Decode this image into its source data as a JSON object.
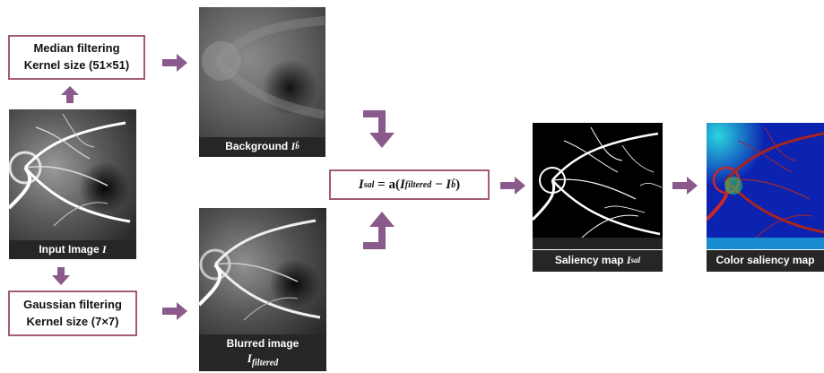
{
  "median_box": {
    "line1": "Median filtering",
    "line2": "Kernel size (51×51)"
  },
  "gaussian_box": {
    "line1": "Gaussian filtering",
    "line2": "Kernel size (7×7)"
  },
  "input_caption": {
    "text": "Input Image ",
    "symbol": "I"
  },
  "background_caption": {
    "text": "Background ",
    "symbol": "I",
    "sub": "b̂"
  },
  "blurred_caption": {
    "line1": "Blurred image",
    "symbol": "I",
    "sub": "filtered"
  },
  "formula": {
    "lhs": "I",
    "lhs_sub": "sal",
    "eq": " = a(",
    "term1": "I",
    "term1_sub": "filtered",
    "minus": " − ",
    "term2": "I",
    "term2_sub": "b̂",
    "close": ")"
  },
  "saliency_caption": {
    "text": "Saliency map ",
    "symbol": "I",
    "sub": "sal"
  },
  "color_caption": {
    "text": "Color saliency map"
  },
  "colors": {
    "box_border": "#a35c72",
    "arrow": "#8a5a8c",
    "caption_bg": "#262626"
  }
}
